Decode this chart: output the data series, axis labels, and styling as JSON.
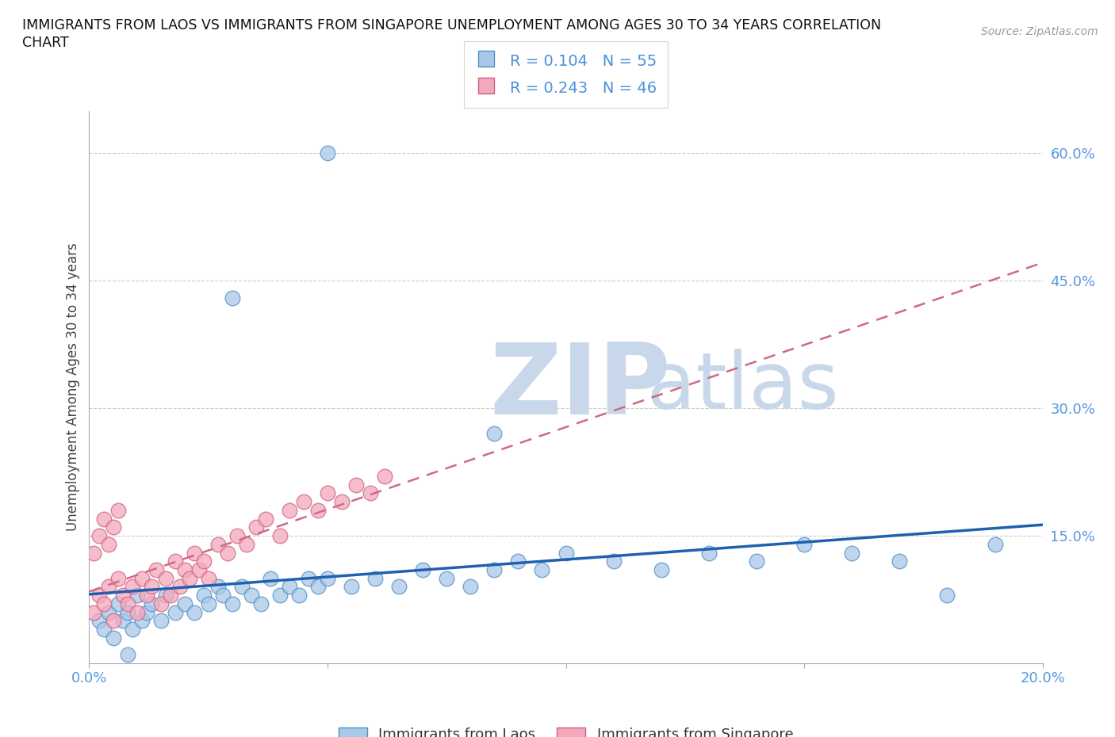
{
  "title": "IMMIGRANTS FROM LAOS VS IMMIGRANTS FROM SINGAPORE UNEMPLOYMENT AMONG AGES 30 TO 34 YEARS CORRELATION\nCHART",
  "source": "Source: ZipAtlas.com",
  "ylabel": "Unemployment Among Ages 30 to 34 years",
  "xlim": [
    0.0,
    0.2
  ],
  "ylim": [
    0.0,
    0.65
  ],
  "xticks": [
    0.0,
    0.05,
    0.1,
    0.15,
    0.2
  ],
  "xtick_labels": [
    "0.0%",
    "",
    "",
    "",
    "20.0%"
  ],
  "ytick_right": [
    0.15,
    0.3,
    0.45,
    0.6
  ],
  "ytick_right_labels": [
    "15.0%",
    "30.0%",
    "45.0%",
    "60.0%"
  ],
  "laos_R": 0.104,
  "laos_N": 55,
  "singapore_R": 0.243,
  "singapore_N": 46,
  "laos_color": "#a8c8e8",
  "singapore_color": "#f4a8bc",
  "laos_edge_color": "#5090c8",
  "singapore_edge_color": "#d06080",
  "laos_line_color": "#2060b0",
  "singapore_line_color": "#d06888",
  "legend_text_color": "#4a90d9",
  "watermark_zip": "ZIP",
  "watermark_atlas": "atlas",
  "watermark_color": "#c8d8ea",
  "laos_x": [
    0.002,
    0.003,
    0.004,
    0.005,
    0.006,
    0.007,
    0.008,
    0.009,
    0.01,
    0.011,
    0.012,
    0.013,
    0.015,
    0.016,
    0.018,
    0.02,
    0.022,
    0.024,
    0.025,
    0.027,
    0.028,
    0.03,
    0.032,
    0.034,
    0.036,
    0.038,
    0.04,
    0.042,
    0.044,
    0.046,
    0.048,
    0.05,
    0.055,
    0.06,
    0.065,
    0.07,
    0.075,
    0.08,
    0.085,
    0.09,
    0.095,
    0.1,
    0.11,
    0.12,
    0.13,
    0.14,
    0.15,
    0.16,
    0.17,
    0.18,
    0.19,
    0.05,
    0.03,
    0.085,
    0.008
  ],
  "laos_y": [
    0.05,
    0.04,
    0.06,
    0.03,
    0.07,
    0.05,
    0.06,
    0.04,
    0.08,
    0.05,
    0.06,
    0.07,
    0.05,
    0.08,
    0.06,
    0.07,
    0.06,
    0.08,
    0.07,
    0.09,
    0.08,
    0.07,
    0.09,
    0.08,
    0.07,
    0.1,
    0.08,
    0.09,
    0.08,
    0.1,
    0.09,
    0.1,
    0.09,
    0.1,
    0.09,
    0.11,
    0.1,
    0.09,
    0.11,
    0.12,
    0.11,
    0.13,
    0.12,
    0.11,
    0.13,
    0.12,
    0.14,
    0.13,
    0.12,
    0.08,
    0.14,
    0.6,
    0.43,
    0.27,
    0.01
  ],
  "singapore_x": [
    0.001,
    0.002,
    0.003,
    0.004,
    0.005,
    0.006,
    0.007,
    0.008,
    0.009,
    0.01,
    0.011,
    0.012,
    0.013,
    0.014,
    0.015,
    0.016,
    0.017,
    0.018,
    0.019,
    0.02,
    0.021,
    0.022,
    0.023,
    0.024,
    0.025,
    0.027,
    0.029,
    0.031,
    0.033,
    0.035,
    0.037,
    0.04,
    0.042,
    0.045,
    0.048,
    0.05,
    0.053,
    0.056,
    0.059,
    0.062,
    0.001,
    0.002,
    0.003,
    0.004,
    0.005,
    0.006
  ],
  "singapore_y": [
    0.06,
    0.08,
    0.07,
    0.09,
    0.05,
    0.1,
    0.08,
    0.07,
    0.09,
    0.06,
    0.1,
    0.08,
    0.09,
    0.11,
    0.07,
    0.1,
    0.08,
    0.12,
    0.09,
    0.11,
    0.1,
    0.13,
    0.11,
    0.12,
    0.1,
    0.14,
    0.13,
    0.15,
    0.14,
    0.16,
    0.17,
    0.15,
    0.18,
    0.19,
    0.18,
    0.2,
    0.19,
    0.21,
    0.2,
    0.22,
    0.13,
    0.15,
    0.17,
    0.14,
    0.16,
    0.18
  ]
}
